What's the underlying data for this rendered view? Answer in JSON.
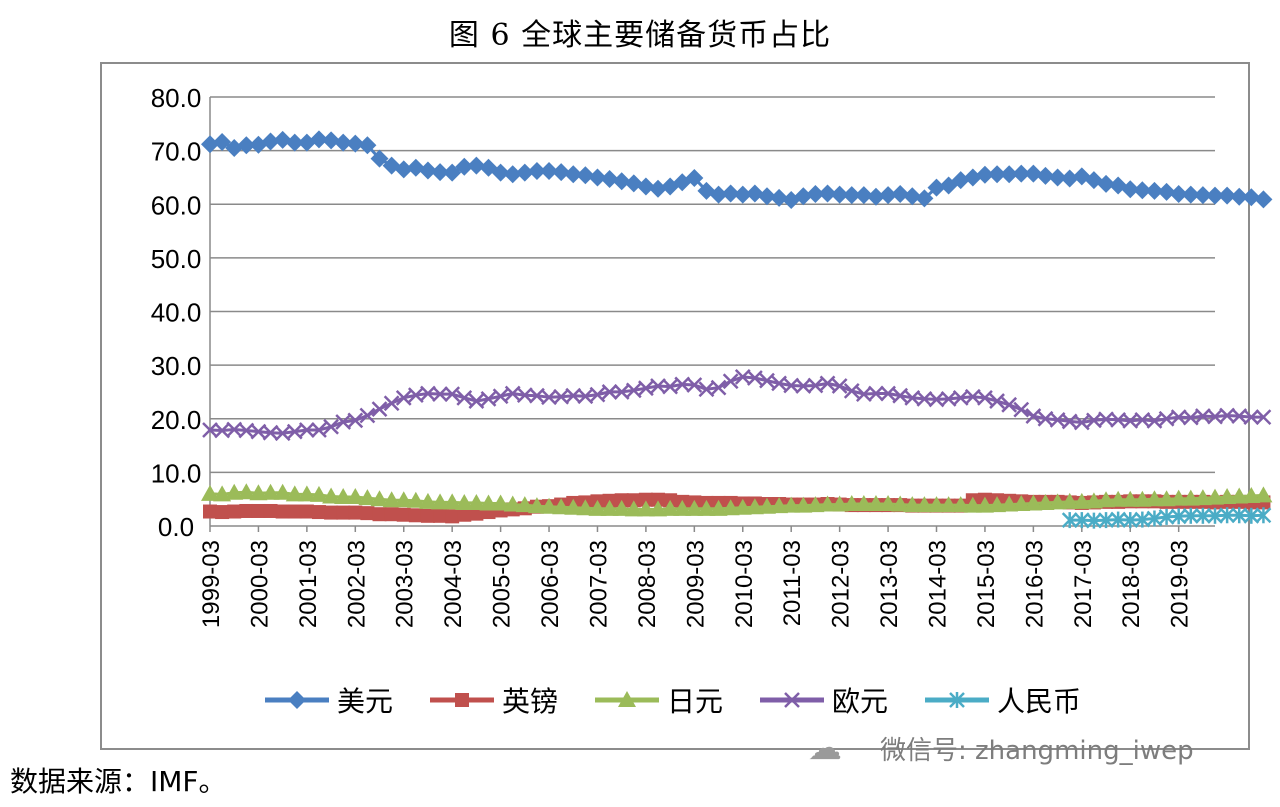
{
  "page": {
    "title": "图 6  全球主要储备货币占比",
    "source": "数据来源：IMF。",
    "watermark": "微信号: zhangming_iwep",
    "watermark_icon": "wechat-icon"
  },
  "chart_data": {
    "type": "line",
    "title": "图 6  全球主要储备货币占比",
    "ylim": [
      0,
      80
    ],
    "yticks": [
      "0.0",
      "10.0",
      "20.0",
      "30.0",
      "40.0",
      "50.0",
      "60.0",
      "70.0",
      "80.0"
    ],
    "xtick_labels": [
      "1999-03",
      "2000-03",
      "2001-03",
      "2002-03",
      "2003-03",
      "2004-03",
      "2005-03",
      "2006-03",
      "2007-03",
      "2008-03",
      "2009-03",
      "2010-03",
      "2011-03",
      "2012-03",
      "2013-03",
      "2014-03",
      "2015-03",
      "2016-03",
      "2017-03",
      "2018-03",
      "2019-03"
    ],
    "x_start": "1999-03",
    "x_end": "2019-12",
    "grid": true,
    "legend_position": "bottom",
    "series": [
      {
        "name": "美元",
        "color": "#4a7fc1",
        "marker": "diamond",
        "values": [
          71.2,
          71.6,
          70.5,
          71.0,
          71.1,
          71.7,
          72.0,
          71.5,
          71.5,
          72.1,
          71.9,
          71.5,
          71.3,
          71.0,
          68.5,
          67.2,
          66.5,
          66.8,
          66.3,
          66.0,
          65.9,
          67.0,
          67.2,
          66.8,
          65.9,
          65.6,
          65.9,
          66.2,
          66.2,
          66.0,
          65.6,
          65.4,
          65.0,
          64.7,
          64.3,
          63.9,
          63.3,
          62.9,
          63.3,
          64.1,
          64.9,
          62.5,
          61.8,
          62.0,
          61.8,
          62.0,
          61.5,
          61.2,
          60.8,
          61.5,
          61.9,
          62.0,
          61.8,
          61.7,
          61.7,
          61.4,
          61.7,
          61.9,
          61.5,
          61.1,
          63.1,
          63.5,
          64.5,
          65.0,
          65.5,
          65.6,
          65.6,
          65.7,
          65.7,
          65.3,
          65.0,
          64.8,
          65.2,
          64.5,
          63.8,
          63.5,
          62.8,
          62.6,
          62.5,
          62.3,
          61.9,
          61.8,
          61.7,
          61.6,
          61.6,
          61.4,
          61.3,
          60.9
        ]
      },
      {
        "name": "英镑",
        "color": "#c0504d",
        "marker": "square",
        "values": [
          2.7,
          2.6,
          2.7,
          2.8,
          2.8,
          2.8,
          2.7,
          2.7,
          2.7,
          2.6,
          2.5,
          2.5,
          2.5,
          2.4,
          2.2,
          2.2,
          2.1,
          2.0,
          1.9,
          1.9,
          1.8,
          2.1,
          2.3,
          2.6,
          2.9,
          3.1,
          3.3,
          3.6,
          3.7,
          4.0,
          4.3,
          4.4,
          4.6,
          4.7,
          4.8,
          4.8,
          4.9,
          4.9,
          4.8,
          4.5,
          4.4,
          4.3,
          4.3,
          4.3,
          4.2,
          4.2,
          4.1,
          4.1,
          4.0,
          4.0,
          4.0,
          4.1,
          4.0,
          3.9,
          3.9,
          3.9,
          3.9,
          3.9,
          3.8,
          3.8,
          3.8,
          3.8,
          3.8,
          4.8,
          4.9,
          4.8,
          4.7,
          4.6,
          4.5,
          4.5,
          4.5,
          4.4,
          4.3,
          4.4,
          4.5,
          4.5,
          4.6,
          4.6,
          4.6,
          4.5,
          4.5,
          4.5,
          4.5,
          4.4,
          4.5,
          4.5,
          4.4,
          4.4
        ]
      },
      {
        "name": "日元",
        "color": "#9bbb59",
        "marker": "triangle",
        "values": [
          6.0,
          5.9,
          6.2,
          6.3,
          6.1,
          6.2,
          6.2,
          5.9,
          5.9,
          5.8,
          5.5,
          5.4,
          5.4,
          5.2,
          5.0,
          4.8,
          4.8,
          4.7,
          4.5,
          4.4,
          4.4,
          4.3,
          4.3,
          4.2,
          4.2,
          4.0,
          3.9,
          3.7,
          3.6,
          3.5,
          3.4,
          3.3,
          3.2,
          3.2,
          3.2,
          3.1,
          3.1,
          3.1,
          3.2,
          3.2,
          3.2,
          3.2,
          3.2,
          3.3,
          3.4,
          3.5,
          3.6,
          3.7,
          3.8,
          3.8,
          3.9,
          4.0,
          4.0,
          4.1,
          4.1,
          4.1,
          4.1,
          4.0,
          3.9,
          3.9,
          3.9,
          3.9,
          3.9,
          3.8,
          3.8,
          3.9,
          4.0,
          4.1,
          4.2,
          4.3,
          4.4,
          4.5,
          4.5,
          4.6,
          4.8,
          4.9,
          4.9,
          4.9,
          5.0,
          5.0,
          5.1,
          5.1,
          5.2,
          5.3,
          5.4,
          5.5,
          5.6,
          5.7
        ]
      },
      {
        "name": "欧元",
        "color": "#7f5ea8",
        "marker": "x",
        "values": [
          17.9,
          17.8,
          18.0,
          17.8,
          17.6,
          17.4,
          17.3,
          17.6,
          17.9,
          17.9,
          18.5,
          19.4,
          19.7,
          20.6,
          21.8,
          22.9,
          23.9,
          24.4,
          24.7,
          24.6,
          24.6,
          23.9,
          23.3,
          23.7,
          24.2,
          24.7,
          24.4,
          24.3,
          24.0,
          24.1,
          24.3,
          24.2,
          24.5,
          25.0,
          25.0,
          25.3,
          25.7,
          26.1,
          26.0,
          26.4,
          26.3,
          25.5,
          25.8,
          27.0,
          27.8,
          27.6,
          27.1,
          26.6,
          26.2,
          26.1,
          26.2,
          26.6,
          26.1,
          25.2,
          24.6,
          24.7,
          24.7,
          24.3,
          23.9,
          23.7,
          23.6,
          23.7,
          23.9,
          24.1,
          23.9,
          23.3,
          22.6,
          21.7,
          20.5,
          20.0,
          19.8,
          19.5,
          19.3,
          19.7,
          19.9,
          19.8,
          19.6,
          19.8,
          19.6,
          20.0,
          20.3,
          20.2,
          20.5,
          20.4,
          20.6,
          20.5,
          20.3,
          20.3
        ]
      },
      {
        "name": "人民币",
        "color": "#4bacc6",
        "marker": "star",
        "values": [
          null,
          null,
          null,
          null,
          null,
          null,
          null,
          null,
          null,
          null,
          null,
          null,
          null,
          null,
          null,
          null,
          null,
          null,
          null,
          null,
          null,
          null,
          null,
          null,
          null,
          null,
          null,
          null,
          null,
          null,
          null,
          null,
          null,
          null,
          null,
          null,
          null,
          null,
          null,
          null,
          null,
          null,
          null,
          null,
          null,
          null,
          null,
          null,
          null,
          null,
          null,
          null,
          null,
          null,
          null,
          null,
          null,
          null,
          null,
          null,
          null,
          null,
          null,
          null,
          null,
          null,
          null,
          null,
          null,
          null,
          null,
          1.1,
          1.1,
          1.0,
          1.1,
          1.2,
          1.1,
          1.2,
          1.4,
          1.7,
          1.8,
          1.9,
          1.9,
          1.9,
          2.0,
          2.0,
          1.9,
          2.0
        ]
      }
    ]
  }
}
